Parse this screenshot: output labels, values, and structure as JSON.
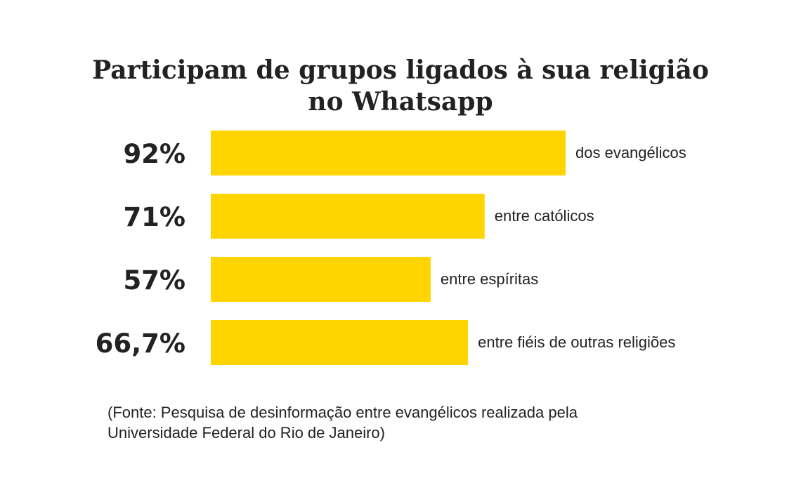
{
  "chart_data": {
    "type": "bar",
    "orientation": "horizontal",
    "title": "Participam de grupos ligados à sua religião no Whatsapp",
    "title_lines": [
      "Participam de grupos ligados à sua religião",
      "no Whatsapp"
    ],
    "categories": [
      "dos evangélicos",
      "entre católicos",
      "entre espíritas",
      "entre fiéis de outras religiões"
    ],
    "values": [
      92,
      71,
      57,
      66.7
    ],
    "value_labels": [
      "92%",
      "71%",
      "57%",
      "66,7%"
    ],
    "xlim": [
      0,
      100
    ],
    "grid": false,
    "bar_color": "#FFD400"
  },
  "source": {
    "lines": [
      "(Fonte: Pesquisa de desinformação entre evangélicos realizada pela",
      "Universidade Federal do Rio de Janeiro)"
    ]
  }
}
